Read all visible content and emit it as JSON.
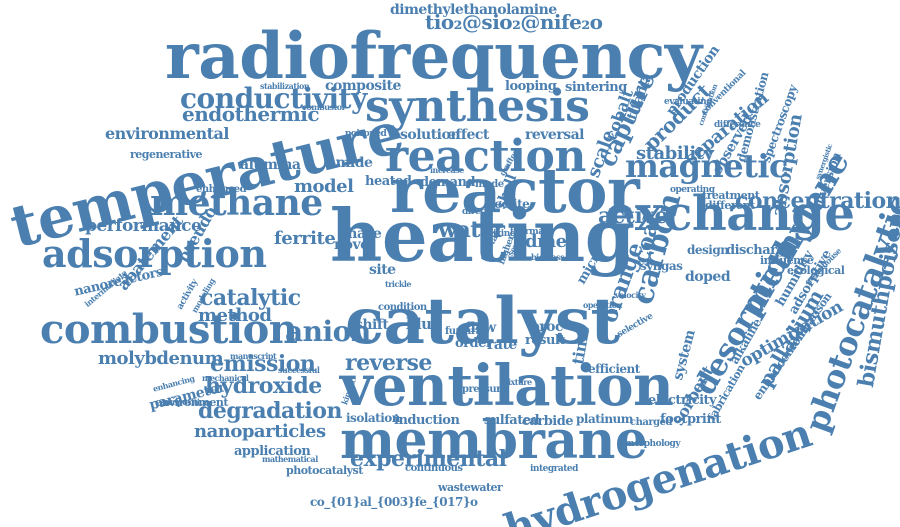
{
  "cloud": {
    "color": "#4a7fb0",
    "words": [
      "radiofrequency",
      "heating",
      "catalyst",
      "ventilation",
      "reactor",
      "temperature",
      "membrane",
      "hydrogenation",
      "exchange",
      "synthesis",
      "reaction",
      "combustion",
      "adsorption",
      "methane",
      "magnetic",
      "photocatalytic",
      "methylene",
      "desorption",
      "conductivity",
      "concentration",
      "experimental",
      "reverse",
      "emission",
      "molybdenum",
      "hydroxide",
      "degradation",
      "nanoparticles",
      "bismuthpoison",
      "endothermic",
      "environmental",
      "dimethylethanolamine",
      "tio₂@sio₂@nife₂o",
      "composite",
      "looping",
      "sintering",
      "capture",
      "product",
      "separation",
      "stability",
      "absorption",
      "active",
      "carbon",
      "coal",
      "palladium",
      "orange",
      "sorbent",
      "time",
      "water",
      "dmea",
      "anion",
      "catalytic",
      "method",
      "ferrite",
      "model",
      "alumina",
      "amide",
      "heated",
      "demand",
      "solution",
      "effect",
      "reversal",
      "scale",
      "cobalt",
      "titania",
      "production",
      "spectroscopy",
      "demonstration",
      "observed",
      "conversion",
      "performance",
      "pseudo",
      "abatement",
      "nanoreactors",
      "phase",
      "novel",
      "site",
      "shift",
      "blue",
      "flow",
      "order",
      "rate",
      "proc",
      "result",
      "zeolite",
      "shell",
      "micro",
      "syngas",
      "design",
      "discharge",
      "influence",
      "ecological",
      "doped",
      "adsorptive",
      "humidity",
      "alkaline",
      "optimization",
      "comparison",
      "enhancement",
      "fabrication",
      "electricity",
      "footprint",
      "platinum",
      "carbide",
      "sulfated",
      "induction",
      "isolation",
      "application",
      "photocatalyst",
      "co_{01}al_{003}fe_{017}o",
      "wastewater",
      "parameter",
      "efficient",
      "system",
      "treatment",
      "different",
      "environment",
      "regenerative",
      "enhanced",
      "manuscript",
      "mathematical",
      "continuous",
      "integrated",
      "morphology",
      "mechanical",
      "successful",
      "composition",
      "enhancing",
      "intermediate",
      "modeling",
      "activity",
      "kinetic",
      "furfural",
      "condition",
      "trickle",
      "poisoned",
      "combustor",
      "stabilization",
      "evaluating",
      "conventional",
      "contribution",
      "difference",
      "synergistic",
      "operating",
      "mixture",
      "pressure",
      "charged",
      "selective",
      "operation",
      "velocity",
      "greenhouse",
      "crystal",
      "mode",
      "grafted",
      "increase",
      "direct",
      "mixing",
      "thermal",
      "several",
      "higher",
      "biomass"
    ]
  }
}
